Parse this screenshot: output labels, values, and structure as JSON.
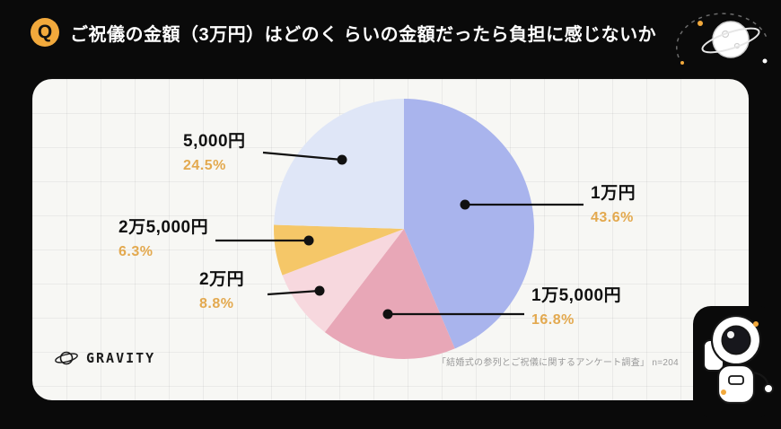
{
  "header": {
    "q_badge": "Q",
    "title": "ご祝儀の金額（3万円）はどのく らいの金額だったら負担に感じないか"
  },
  "chart_data": {
    "type": "pie",
    "title": "ご祝儀の金額（3万円）はどのく らいの金額だったら負担に感じないか",
    "unit": "%",
    "start_angle": "top",
    "direction": "clockwise",
    "segments": [
      {
        "label": "1万円",
        "value": 43.6,
        "percent_label": "43.6%",
        "color": "#a9b4ed"
      },
      {
        "label": "1万5,000円",
        "value": 16.8,
        "percent_label": "16.8%",
        "color": "#e8a7b7"
      },
      {
        "label": "2万円",
        "value": 8.8,
        "percent_label": "8.8%",
        "color": "#f7d8de"
      },
      {
        "label": "2万5,000円",
        "value": 6.3,
        "percent_label": "6.3%",
        "color": "#f5c768"
      },
      {
        "label": "5,000円",
        "value": 24.5,
        "percent_label": "24.5%",
        "color": "#dfe6f7"
      }
    ],
    "percent_text_color": "#e3a94f",
    "label_text_color": "#111111",
    "legend_position": "callouts"
  },
  "footer": {
    "logo": "GRAVITY",
    "source": "「結婚式の参列とご祝儀に関するアンケート調査」 n=204"
  }
}
